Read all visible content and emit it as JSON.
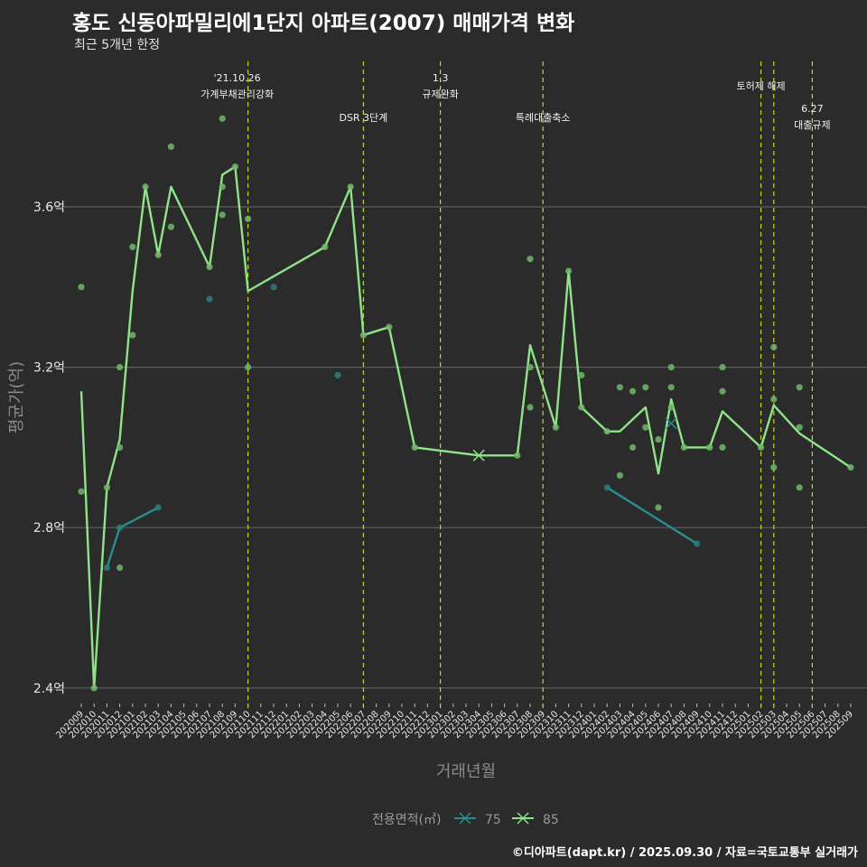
{
  "title": "홍도 신동아파밀리에1단지 아파트(2007) 매매가격 변화",
  "subtitle": "최근 5개년 한정",
  "caption": "©디아파트(dapt.kr) / 2025.09.30 / 자료=국토교통부 실거래가",
  "chart_data": {
    "type": "line",
    "title": "홍도 신동아파밀리에1단지 아파트(2007) 매매가격 변화",
    "xlabel": "거래년월",
    "ylabel": "평균가(억)",
    "ylim": [
      2.33,
      3.9
    ],
    "yticks": [
      2.4,
      2.8,
      3.2,
      3.6
    ],
    "ytick_labels": [
      "2.4억",
      "2.8억",
      "3.2억",
      "3.6억"
    ],
    "grid": true,
    "legend": {
      "title": "전용면적(㎡)",
      "position": "bottom",
      "entries": [
        "75",
        "85"
      ]
    },
    "categories": [
      "202009",
      "202010",
      "202011",
      "202012",
      "202101",
      "202102",
      "202103",
      "202104",
      "202105",
      "202106",
      "202107",
      "202108",
      "202109",
      "202110",
      "202111",
      "202112",
      "202201",
      "202202",
      "202203",
      "202204",
      "202205",
      "202206",
      "202207",
      "202208",
      "202209",
      "202210",
      "202211",
      "202212",
      "202301",
      "202302",
      "202303",
      "202304",
      "202305",
      "202306",
      "202307",
      "202308",
      "202309",
      "202310",
      "202311",
      "202312",
      "202401",
      "202402",
      "202403",
      "202404",
      "202405",
      "202406",
      "202407",
      "202408",
      "202409",
      "202410",
      "202411",
      "202412",
      "202501",
      "202502",
      "202503",
      "202504",
      "202505",
      "202506",
      "202507",
      "202508",
      "202509"
    ],
    "series": [
      {
        "name": "75",
        "color": "#2a8c8c",
        "segments": [
          [
            [
              "202011",
              2.7
            ],
            [
              "202012",
              2.8
            ],
            [
              "202103",
              2.85
            ]
          ],
          [
            [
              "202402",
              2.9
            ],
            [
              "202409",
              2.76
            ]
          ]
        ]
      },
      {
        "name": "85",
        "color": "#8fe388",
        "segments": [
          [
            [
              "202009",
              3.14
            ],
            [
              "202010",
              2.4
            ],
            [
              "202011",
              2.9
            ],
            [
              "202012",
              3.02
            ],
            [
              "202101",
              3.39
            ],
            [
              "202102",
              3.65
            ],
            [
              "202103",
              3.48
            ],
            [
              "202104",
              3.65
            ],
            [
              "202107",
              3.45
            ],
            [
              "202108",
              3.68
            ],
            [
              "202109",
              3.7
            ],
            [
              "202110",
              3.39
            ],
            [
              "202204",
              3.5
            ],
            [
              "202206",
              3.65
            ],
            [
              "202207",
              3.28
            ],
            [
              "202209",
              3.3
            ],
            [
              "202211",
              3.0
            ],
            [
              "202304",
              2.98
            ],
            [
              "202307",
              2.98
            ],
            [
              "202308",
              3.255
            ],
            [
              "202310",
              3.05
            ],
            [
              "202311",
              3.44
            ],
            [
              "202312",
              3.1
            ],
            [
              "202402",
              3.04
            ],
            [
              "202403",
              3.04
            ],
            [
              "202405",
              3.1
            ],
            [
              "202406",
              2.935
            ],
            [
              "202407",
              3.12
            ],
            [
              "202408",
              3.0
            ],
            [
              "202410",
              3.0
            ],
            [
              "202411",
              3.09
            ],
            [
              "202502",
              3.0
            ],
            [
              "202503",
              3.105
            ],
            [
              "202505",
              3.035
            ],
            [
              "202509",
              2.95
            ]
          ]
        ]
      }
    ],
    "points": {
      "75": [
        [
          "202011",
          2.7
        ],
        [
          "202012",
          2.8
        ],
        [
          "202103",
          2.85
        ],
        [
          "202107",
          3.37
        ],
        [
          "202112",
          3.4
        ],
        [
          "202205",
          3.18
        ],
        [
          "202402",
          2.9
        ],
        [
          "202409",
          2.76
        ]
      ],
      "85": [
        [
          "202009",
          3.4
        ],
        [
          "202009",
          2.89
        ],
        [
          "202010",
          2.4
        ],
        [
          "202011",
          2.9
        ],
        [
          "202012",
          3.2
        ],
        [
          "202012",
          3.0
        ],
        [
          "202012",
          2.7
        ],
        [
          "202101",
          3.5
        ],
        [
          "202101",
          3.28
        ],
        [
          "202102",
          3.65
        ],
        [
          "202103",
          3.48
        ],
        [
          "202104",
          3.75
        ],
        [
          "202104",
          3.55
        ],
        [
          "202107",
          3.45
        ],
        [
          "202108",
          3.82
        ],
        [
          "202108",
          3.65
        ],
        [
          "202108",
          3.58
        ],
        [
          "202109",
          3.7
        ],
        [
          "202110",
          3.57
        ],
        [
          "202110",
          3.2
        ],
        [
          "202204",
          3.5
        ],
        [
          "202206",
          3.65
        ],
        [
          "202207",
          3.28
        ],
        [
          "202209",
          3.3
        ],
        [
          "202211",
          3.0
        ],
        [
          "202307",
          2.98
        ],
        [
          "202308",
          3.47
        ],
        [
          "202308",
          3.2
        ],
        [
          "202308",
          3.1
        ],
        [
          "202310",
          3.05
        ],
        [
          "202311",
          3.44
        ],
        [
          "202312",
          3.18
        ],
        [
          "202312",
          3.1
        ],
        [
          "202402",
          3.04
        ],
        [
          "202403",
          3.15
        ],
        [
          "202403",
          2.93
        ],
        [
          "202404",
          3.14
        ],
        [
          "202404",
          3.0
        ],
        [
          "202405",
          3.15
        ],
        [
          "202405",
          3.05
        ],
        [
          "202406",
          3.02
        ],
        [
          "202406",
          2.85
        ],
        [
          "202407",
          3.2
        ],
        [
          "202407",
          3.15
        ],
        [
          "202407",
          3.1
        ],
        [
          "202408",
          3.0
        ],
        [
          "202410",
          3.0
        ],
        [
          "202411",
          3.2
        ],
        [
          "202411",
          3.14
        ],
        [
          "202411",
          3.0
        ],
        [
          "202502",
          3.0
        ],
        [
          "202503",
          3.25
        ],
        [
          "202503",
          3.12
        ],
        [
          "202503",
          2.95
        ],
        [
          "202505",
          3.15
        ],
        [
          "202505",
          3.05
        ],
        [
          "202505",
          2.9
        ],
        [
          "202509",
          2.95
        ]
      ]
    },
    "cross_markers": [
      [
        "75",
        "202407",
        3.06
      ],
      [
        "85",
        "202304",
        2.98
      ]
    ],
    "events": [
      {
        "month": "202110",
        "lines": [
          "'21.10.26",
          "가계부채관리강화"
        ]
      },
      {
        "month": "202207",
        "lines": [
          "DSR 3단계"
        ]
      },
      {
        "month": "202301",
        "lines": [
          "1.3",
          "규제완화"
        ]
      },
      {
        "month": "202309",
        "lines": [
          "특례대출축소"
        ]
      },
      {
        "month": "202502",
        "lines": [
          "토허제 해제"
        ]
      },
      {
        "month": "202503",
        "lines": []
      },
      {
        "month": "202506",
        "lines": [
          "6.27",
          "대출규제"
        ]
      }
    ],
    "event_line_color": "#c8d422"
  }
}
